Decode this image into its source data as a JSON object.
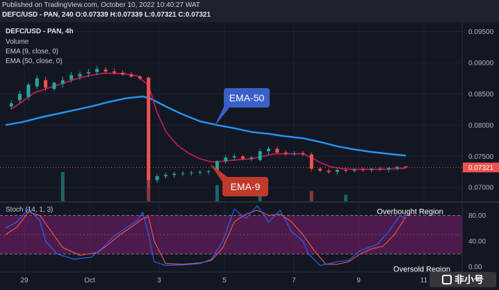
{
  "header": {
    "published": "Published on TradingView.com, October 10, 2022 10:40:27 WAT",
    "symbol": "DEFC/USD - PAN, 240",
    "ohlc_o": "O:0.07339",
    "ohlc_h": "H:0.07339",
    "ohlc_l": "L:0.07321",
    "ohlc_c": "C:0.07321"
  },
  "legend": {
    "title": "DEFC/USD - PAN, 4h",
    "volume": "Volume",
    "ema9": "EMA (9, close, 0)",
    "ema50": "EMA (50, close, 0)",
    "stoch": "Stoch (14, 1, 3)"
  },
  "colors": {
    "background": "#131722",
    "up": "#26a69a",
    "down": "#ef5350",
    "ema9": "#c2185b",
    "ema50": "#2196f3",
    "stoch_k": "#2962ff",
    "stoch_d": "#ef5350",
    "stoch_band": "#7e1f6e"
  },
  "watermark": "非小号",
  "chart_data": [
    {
      "type": "candlestick",
      "title": "DEFC/USD - PAN, 4h",
      "xlabel": "",
      "ylabel": "",
      "x_ticks": [
        "29",
        "Oct",
        "3",
        "5",
        "7",
        "9",
        "11"
      ],
      "y_ticks": [
        "0.09500",
        "0.09000",
        "0.08500",
        "0.08000",
        "0.07500",
        "0.07000"
      ],
      "ylim": [
        0.0678,
        0.0965
      ],
      "last_price_label": "0.07321",
      "candles": [
        {
          "x": 2,
          "o": 0.083,
          "h": 0.084,
          "l": 0.0825,
          "c": 0.0835
        },
        {
          "x": 5,
          "o": 0.084,
          "h": 0.0855,
          "l": 0.0835,
          "c": 0.085
        },
        {
          "x": 8,
          "o": 0.0845,
          "h": 0.0868,
          "l": 0.084,
          "c": 0.0865
        },
        {
          "x": 11,
          "o": 0.0862,
          "h": 0.088,
          "l": 0.0858,
          "c": 0.0875
        },
        {
          "x": 14,
          "o": 0.0872,
          "h": 0.0878,
          "l": 0.0855,
          "c": 0.086
        },
        {
          "x": 17,
          "o": 0.0858,
          "h": 0.087,
          "l": 0.0855,
          "c": 0.0868
        },
        {
          "x": 20,
          "o": 0.0866,
          "h": 0.0878,
          "l": 0.086,
          "c": 0.0872
        },
        {
          "x": 23,
          "o": 0.0873,
          "h": 0.0885,
          "l": 0.0868,
          "c": 0.088
        },
        {
          "x": 26,
          "o": 0.0878,
          "h": 0.0886,
          "l": 0.0872,
          "c": 0.0882
        },
        {
          "x": 29,
          "o": 0.0883,
          "h": 0.089,
          "l": 0.0877,
          "c": 0.0885
        },
        {
          "x": 32,
          "o": 0.0885,
          "h": 0.0895,
          "l": 0.088,
          "c": 0.089
        },
        {
          "x": 35,
          "o": 0.0889,
          "h": 0.0893,
          "l": 0.0883,
          "c": 0.0886
        },
        {
          "x": 38,
          "o": 0.0886,
          "h": 0.0891,
          "l": 0.0881,
          "c": 0.0884
        },
        {
          "x": 41,
          "o": 0.0884,
          "h": 0.0888,
          "l": 0.0879,
          "c": 0.0881
        },
        {
          "x": 44,
          "o": 0.0881,
          "h": 0.0885,
          "l": 0.0876,
          "c": 0.0878
        },
        {
          "x": 47,
          "o": 0.0878,
          "h": 0.088,
          "l": 0.0872,
          "c": 0.0875
        },
        {
          "x": 50,
          "o": 0.0876,
          "h": 0.0878,
          "l": 0.07,
          "c": 0.0712
        },
        {
          "x": 53,
          "o": 0.0712,
          "h": 0.0722,
          "l": 0.0708,
          "c": 0.0718
        },
        {
          "x": 56,
          "o": 0.0718,
          "h": 0.0724,
          "l": 0.0714,
          "c": 0.072
        },
        {
          "x": 59,
          "o": 0.072,
          "h": 0.0725,
          "l": 0.0716,
          "c": 0.0722
        },
        {
          "x": 62,
          "o": 0.0722,
          "h": 0.0726,
          "l": 0.0718,
          "c": 0.0723
        },
        {
          "x": 65,
          "o": 0.0723,
          "h": 0.0727,
          "l": 0.0719,
          "c": 0.0724
        },
        {
          "x": 68,
          "o": 0.0724,
          "h": 0.0728,
          "l": 0.072,
          "c": 0.0725
        },
        {
          "x": 71,
          "o": 0.0725,
          "h": 0.0728,
          "l": 0.0721,
          "c": 0.0726
        },
        {
          "x": 74,
          "o": 0.0726,
          "h": 0.0744,
          "l": 0.0723,
          "c": 0.0742
        },
        {
          "x": 77,
          "o": 0.0742,
          "h": 0.0752,
          "l": 0.0738,
          "c": 0.0748
        },
        {
          "x": 80,
          "o": 0.0748,
          "h": 0.0754,
          "l": 0.0743,
          "c": 0.075
        },
        {
          "x": 83,
          "o": 0.075,
          "h": 0.0752,
          "l": 0.0744,
          "c": 0.0746
        },
        {
          "x": 86,
          "o": 0.0746,
          "h": 0.0751,
          "l": 0.0742,
          "c": 0.0748
        },
        {
          "x": 89,
          "o": 0.0744,
          "h": 0.0762,
          "l": 0.0742,
          "c": 0.0758
        },
        {
          "x": 92,
          "o": 0.0758,
          "h": 0.0766,
          "l": 0.0752,
          "c": 0.0762
        },
        {
          "x": 95,
          "o": 0.0762,
          "h": 0.0766,
          "l": 0.0754,
          "c": 0.0756
        },
        {
          "x": 98,
          "o": 0.0756,
          "h": 0.076,
          "l": 0.075,
          "c": 0.0754
        },
        {
          "x": 101,
          "o": 0.0754,
          "h": 0.0758,
          "l": 0.0751,
          "c": 0.0755
        },
        {
          "x": 104,
          "o": 0.0755,
          "h": 0.0758,
          "l": 0.075,
          "c": 0.0753
        },
        {
          "x": 107,
          "o": 0.0753,
          "h": 0.0756,
          "l": 0.0726,
          "c": 0.073
        },
        {
          "x": 110,
          "o": 0.073,
          "h": 0.0733,
          "l": 0.0724,
          "c": 0.0727
        },
        {
          "x": 113,
          "o": 0.0727,
          "h": 0.073,
          "l": 0.0722,
          "c": 0.0725
        },
        {
          "x": 116,
          "o": 0.0725,
          "h": 0.073,
          "l": 0.072,
          "c": 0.0728
        },
        {
          "x": 119,
          "o": 0.0728,
          "h": 0.0731,
          "l": 0.0724,
          "c": 0.0727
        },
        {
          "x": 122,
          "o": 0.0727,
          "h": 0.073,
          "l": 0.0724,
          "c": 0.0729
        },
        {
          "x": 125,
          "o": 0.0729,
          "h": 0.0732,
          "l": 0.0725,
          "c": 0.0728
        },
        {
          "x": 128,
          "o": 0.0728,
          "h": 0.0731,
          "l": 0.0724,
          "c": 0.073
        },
        {
          "x": 131,
          "o": 0.073,
          "h": 0.0733,
          "l": 0.0726,
          "c": 0.0729
        },
        {
          "x": 134,
          "o": 0.0729,
          "h": 0.0733,
          "l": 0.0724,
          "c": 0.0731
        },
        {
          "x": 137,
          "o": 0.0731,
          "h": 0.0735,
          "l": 0.0727,
          "c": 0.0733
        },
        {
          "x": 140,
          "o": 0.07339,
          "h": 0.07339,
          "l": 0.07321,
          "c": 0.07321
        }
      ],
      "ema9": [
        [
          2,
          0.0826
        ],
        [
          6,
          0.0838
        ],
        [
          10,
          0.0852
        ],
        [
          14,
          0.0858
        ],
        [
          18,
          0.0864
        ],
        [
          22,
          0.087
        ],
        [
          26,
          0.0876
        ],
        [
          30,
          0.088
        ],
        [
          34,
          0.0883
        ],
        [
          38,
          0.0883
        ],
        [
          42,
          0.0882
        ],
        [
          46,
          0.0879
        ],
        [
          50,
          0.0864
        ],
        [
          53,
          0.082
        ],
        [
          56,
          0.079
        ],
        [
          60,
          0.0768
        ],
        [
          64,
          0.0755
        ],
        [
          68,
          0.0746
        ],
        [
          72,
          0.0741
        ],
        [
          76,
          0.0742
        ],
        [
          80,
          0.0744
        ],
        [
          86,
          0.0746
        ],
        [
          90,
          0.075
        ],
        [
          94,
          0.0754
        ],
        [
          98,
          0.0754
        ],
        [
          104,
          0.0754
        ],
        [
          107,
          0.0748
        ],
        [
          110,
          0.074
        ],
        [
          114,
          0.0733
        ],
        [
          118,
          0.073
        ],
        [
          124,
          0.0729
        ],
        [
          130,
          0.0729
        ],
        [
          136,
          0.073
        ],
        [
          140,
          0.0731
        ]
      ],
      "ema50": [
        [
          0,
          0.08
        ],
        [
          6,
          0.0805
        ],
        [
          12,
          0.0812
        ],
        [
          18,
          0.0818
        ],
        [
          24,
          0.0824
        ],
        [
          30,
          0.083
        ],
        [
          36,
          0.0837
        ],
        [
          42,
          0.0843
        ],
        [
          48,
          0.0846
        ],
        [
          51,
          0.0842
        ],
        [
          56,
          0.083
        ],
        [
          62,
          0.0817
        ],
        [
          68,
          0.0806
        ],
        [
          74,
          0.08
        ],
        [
          80,
          0.0795
        ],
        [
          86,
          0.0789
        ],
        [
          92,
          0.0786
        ],
        [
          98,
          0.0782
        ],
        [
          104,
          0.0779
        ],
        [
          110,
          0.0773
        ],
        [
          116,
          0.0766
        ],
        [
          122,
          0.0761
        ],
        [
          128,
          0.0757
        ],
        [
          134,
          0.0754
        ],
        [
          140,
          0.0751
        ]
      ],
      "volume": [
        {
          "x": 20,
          "v": 1.0,
          "up": true
        },
        {
          "x": 50,
          "v": 1.0,
          "up": false
        },
        {
          "x": 74,
          "v": 0.55,
          "up": true
        },
        {
          "x": 89,
          "v": 0.25,
          "up": true
        },
        {
          "x": 107,
          "v": 0.35,
          "up": false
        },
        {
          "x": 119,
          "v": 0.22,
          "up": true
        }
      ],
      "annotations": [
        {
          "text": "EMA-50",
          "color": "#3a5fc8"
        },
        {
          "text": "EMA-9",
          "color": "#c0392b"
        }
      ]
    },
    {
      "type": "line",
      "title": "Stoch (14, 1, 3)",
      "xlabel": "",
      "ylabel": "",
      "y_ticks": [
        "80.00",
        "40.00",
        "0.00"
      ],
      "ylim": [
        -8,
        100
      ],
      "band": [
        20,
        80
      ],
      "annotations": [
        {
          "text": "Overbought Region"
        },
        {
          "text": "Oversold Region"
        }
      ],
      "series": [
        {
          "key": "k",
          "points": [
            [
              0,
              60
            ],
            [
              4,
              70
            ],
            [
              8,
              90
            ],
            [
              12,
              72
            ],
            [
              14,
              40
            ],
            [
              18,
              20
            ],
            [
              24,
              12
            ],
            [
              30,
              15
            ],
            [
              34,
              30
            ],
            [
              38,
              48
            ],
            [
              42,
              60
            ],
            [
              46,
              72
            ],
            [
              48,
              85
            ],
            [
              50,
              50
            ],
            [
              52,
              8
            ],
            [
              56,
              2
            ],
            [
              62,
              3
            ],
            [
              68,
              5
            ],
            [
              72,
              12
            ],
            [
              76,
              40
            ],
            [
              80,
              90
            ],
            [
              84,
              75
            ],
            [
              88,
              95
            ],
            [
              92,
              70
            ],
            [
              96,
              88
            ],
            [
              100,
              55
            ],
            [
              104,
              40
            ],
            [
              106,
              20
            ],
            [
              110,
              2
            ],
            [
              116,
              8
            ],
            [
              120,
              10
            ],
            [
              124,
              25
            ],
            [
              130,
              35
            ],
            [
              134,
              55
            ],
            [
              138,
              80
            ],
            [
              140,
              75
            ]
          ]
        },
        {
          "key": "d",
          "points": [
            [
              0,
              50
            ],
            [
              4,
              62
            ],
            [
              8,
              85
            ],
            [
              12,
              80
            ],
            [
              16,
              55
            ],
            [
              20,
              30
            ],
            [
              26,
              18
            ],
            [
              32,
              22
            ],
            [
              36,
              35
            ],
            [
              40,
              50
            ],
            [
              44,
              62
            ],
            [
              48,
              75
            ],
            [
              50,
              78
            ],
            [
              52,
              40
            ],
            [
              56,
              5
            ],
            [
              62,
              4
            ],
            [
              68,
              6
            ],
            [
              72,
              10
            ],
            [
              76,
              30
            ],
            [
              80,
              70
            ],
            [
              84,
              82
            ],
            [
              88,
              88
            ],
            [
              92,
              80
            ],
            [
              96,
              82
            ],
            [
              100,
              70
            ],
            [
              104,
              50
            ],
            [
              108,
              25
            ],
            [
              112,
              4
            ],
            [
              116,
              4
            ],
            [
              120,
              8
            ],
            [
              124,
              20
            ],
            [
              128,
              28
            ],
            [
              132,
              32
            ],
            [
              136,
              50
            ],
            [
              140,
              78
            ]
          ]
        }
      ]
    }
  ]
}
